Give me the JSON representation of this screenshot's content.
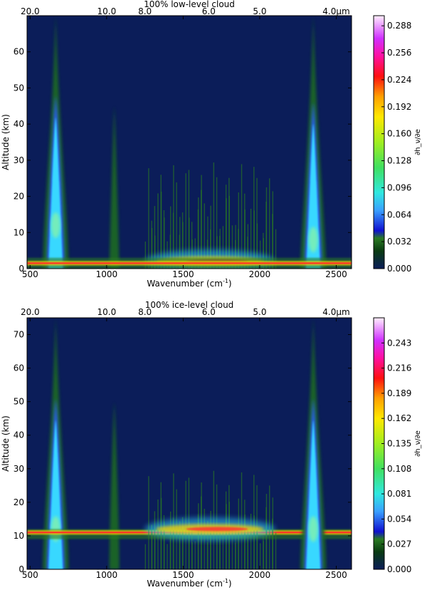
{
  "chart_data": [
    {
      "type": "heatmap",
      "title": "100% low-level cloud",
      "xlabel": "Wavenumber (cm^-1)",
      "ylabel": "Altitude (km)",
      "xlim": [
        480,
        2600
      ],
      "ylim": [
        0,
        70
      ],
      "xticks": [
        500,
        1000,
        1500,
        2000,
        2500
      ],
      "yticks": [
        0,
        10,
        20,
        30,
        40,
        50,
        60
      ],
      "top_axis_ticks": [
        {
          "label": "20.0",
          "wavenumber": 500
        },
        {
          "label": "10.0",
          "wavenumber": 1000
        },
        {
          "label": "8.0",
          "wavenumber": 1250
        },
        {
          "label": "6.0",
          "wavenumber": 1667
        },
        {
          "label": "5.0",
          "wavenumber": 2000
        },
        {
          "label": "4.0μm",
          "wavenumber": 2500
        }
      ],
      "colorbar": {
        "label": "∂h_ν/∂e",
        "min": 0.0,
        "max": 0.3,
        "ticks": [
          "0.000",
          "0.032",
          "0.064",
          "0.096",
          "0.128",
          "0.160",
          "0.192",
          "0.224",
          "0.256",
          "0.288"
        ]
      },
      "features": [
        {
          "wavenumber": 667,
          "alt_from": 0,
          "alt_to": 70,
          "peak_alt": 12,
          "peak_value": 0.07
        },
        {
          "wavenumber": 1050,
          "alt_from": 0,
          "alt_to": 45,
          "peak_alt": 2,
          "peak_value": 0.02
        },
        {
          "wavenumber_range": [
            1250,
            2100
          ],
          "alt_from": 0,
          "alt_to": 30,
          "peak_alt": 2,
          "peak_value": 0.26
        },
        {
          "wavenumber": 2350,
          "alt_from": 0,
          "alt_to": 70,
          "peak_alt": 8,
          "peak_value": 0.07
        },
        {
          "wavenumber_range": [
            480,
            2600
          ],
          "alt_from": 0,
          "alt_to": 3,
          "peak_alt": 1.5,
          "peak_value": 0.2
        }
      ]
    },
    {
      "type": "heatmap",
      "title": "100% ice-level cloud",
      "xlabel": "Wavenumber (cm^-1)",
      "ylabel": "Altitude (km)",
      "xlim": [
        480,
        2600
      ],
      "ylim": [
        0,
        75
      ],
      "xticks": [
        500,
        1000,
        1500,
        2000,
        2500
      ],
      "yticks": [
        0,
        10,
        20,
        30,
        40,
        50,
        60,
        70
      ],
      "top_axis_ticks": [
        {
          "label": "20.0",
          "wavenumber": 500
        },
        {
          "label": "10.0",
          "wavenumber": 1000
        },
        {
          "label": "8.0",
          "wavenumber": 1250
        },
        {
          "label": "6.0",
          "wavenumber": 1667
        },
        {
          "label": "5.0",
          "wavenumber": 2000
        },
        {
          "label": "4.0μm",
          "wavenumber": 2500
        }
      ],
      "colorbar": {
        "label": "∂h_ν/∂e",
        "min": 0.0,
        "max": 0.27,
        "ticks": [
          "0.000",
          "0.027",
          "0.054",
          "0.081",
          "0.108",
          "0.135",
          "0.162",
          "0.189",
          "0.216",
          "0.243"
        ]
      },
      "features": [
        {
          "wavenumber": 667,
          "alt_from": 0,
          "alt_to": 75,
          "peak_alt": 12,
          "peak_value": 0.06
        },
        {
          "wavenumber": 1050,
          "alt_from": 0,
          "alt_to": 50,
          "peak_alt": 10,
          "peak_value": 0.02
        },
        {
          "wavenumber_range": [
            480,
            2600
          ],
          "alt_from": 9,
          "alt_to": 12,
          "peak_alt": 11,
          "peak_value": 0.2
        },
        {
          "wavenumber_range": [
            1250,
            2100
          ],
          "alt_from": 0,
          "alt_to": 30,
          "peak_alt": 12,
          "peak_value": 0.14
        },
        {
          "wavenumber": 2350,
          "alt_from": 0,
          "alt_to": 75,
          "peak_alt": 12,
          "peak_value": 0.06
        }
      ]
    }
  ]
}
